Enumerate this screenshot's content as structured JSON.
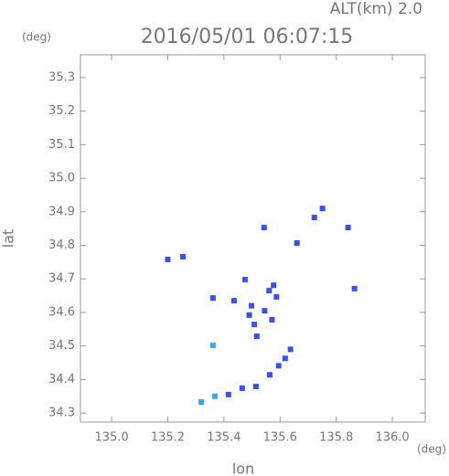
{
  "chart_data": {
    "type": "scatter",
    "title": "2016/05/01 06:07:15",
    "subtitle": "ALT(km) 2.0",
    "x_label": "lon",
    "y_label": "lat",
    "x_unit": "(deg)",
    "y_unit": "(deg)",
    "xlim": [
      134.889,
      136.117
    ],
    "ylim": [
      34.273,
      35.368
    ],
    "xticks": [
      {
        "value": 135.0,
        "label": "135.0"
      },
      135.2,
      135.4,
      135.6,
      135.8,
      {
        "value": 136.0,
        "label": "136.0"
      }
    ],
    "yticks": [
      34.3,
      34.4,
      34.5,
      34.6,
      34.7,
      34.8,
      34.9,
      {
        "value": 35.0,
        "label": "35.0"
      },
      35.1,
      35.2,
      35.3
    ],
    "x": [
      135.2,
      135.254,
      135.361,
      135.361,
      135.475,
      135.436,
      135.49,
      135.508,
      135.517,
      135.498,
      135.545,
      135.561,
      135.577,
      135.587,
      135.571,
      135.543,
      135.722,
      135.751,
      135.842,
      135.865,
      135.66,
      135.319,
      135.368,
      135.416,
      135.465,
      135.514,
      135.563,
      135.595,
      135.618,
      135.637
    ],
    "y": [
      34.758,
      34.766,
      34.643,
      34.502,
      34.698,
      34.635,
      34.592,
      34.564,
      34.529,
      34.62,
      34.605,
      34.665,
      34.681,
      34.646,
      34.578,
      34.853,
      34.883,
      34.91,
      34.853,
      34.671,
      34.807,
      34.333,
      34.35,
      34.355,
      34.374,
      34.379,
      34.414,
      34.441,
      34.463,
      34.49
    ],
    "colors": [
      "#3a4ff0",
      "#3a4ff0",
      "#3a4ff0",
      "#3aa6f0",
      "#3a4ff0",
      "#3a4ff0",
      "#3a4ff0",
      "#3a4ff0",
      "#3a4ff0",
      "#3a4ff0",
      "#3a4ff0",
      "#3a4ff0",
      "#3a4ff0",
      "#3a4ff0",
      "#3a4ff0",
      "#3a4ff0",
      "#3a4ff0",
      "#3a4ff0",
      "#3a4ff0",
      "#3a4ff0",
      "#3a4ff0",
      "#3aa6f0",
      "#3aa6f0",
      "#3a4ff0",
      "#3a4ff0",
      "#3a4ff0",
      "#3a4ff0",
      "#3a4ff0",
      "#3a4ff0",
      "#3a4ff0"
    ]
  }
}
